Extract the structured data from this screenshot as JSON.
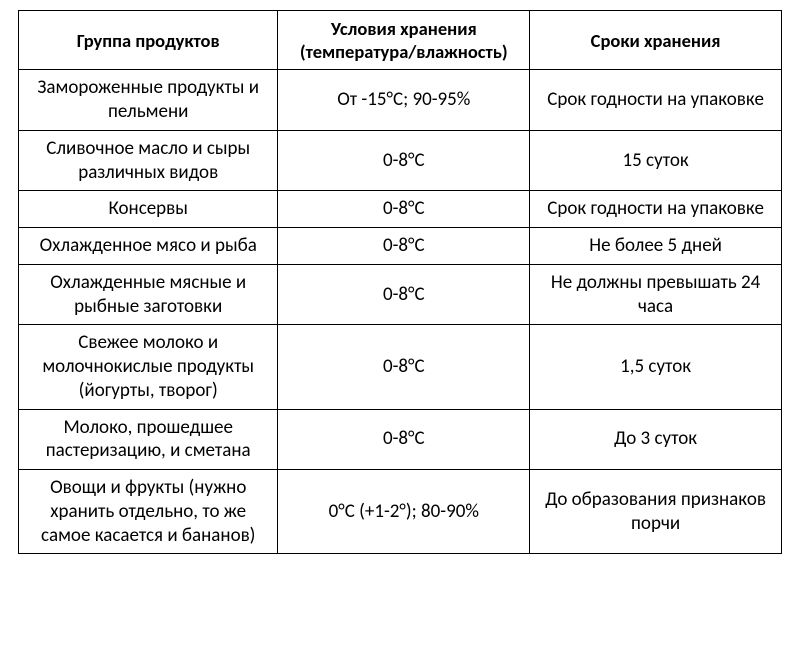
{
  "table": {
    "type": "table",
    "background_color": "#ffffff",
    "border_color": "#000000",
    "text_color": "#000000",
    "header_fontsize": 18.5,
    "cell_fontsize": 19,
    "font_family": "Calibri",
    "column_widths_pct": [
      34,
      33,
      33
    ],
    "columns": [
      "Группа продуктов",
      "Условия хранения (температура/влажность)",
      "Сроки хранения"
    ],
    "rows": [
      [
        "Замороженные продукты и пельмени",
        "От -15°C; 90-95%",
        "Срок годности на упаковке"
      ],
      [
        "Сливочное масло и сыры различных видов",
        "0-8°C",
        "15 суток"
      ],
      [
        "Консервы",
        "0-8°C",
        "Срок годности на упаковке"
      ],
      [
        "Охлажденное мясо и рыба",
        "0-8°C",
        "Не более 5 дней"
      ],
      [
        "Охлажденные мясные и рыбные заготовки",
        "0-8°C",
        "Не должны превышать 24 часа"
      ],
      [
        "Свежее молоко и молочнокислые продукты (йогурты, творог)",
        "0-8°C",
        "1,5 суток"
      ],
      [
        "Молоко, прошедшее пастеризацию, и сметана",
        "0-8°C",
        "До 3 суток"
      ],
      [
        "Овощи и фрукты (нужно хранить отдельно, то же самое касается и бананов)",
        "0°C (+1-2°); 80-90%",
        "До образования признаков порчи"
      ]
    ]
  }
}
